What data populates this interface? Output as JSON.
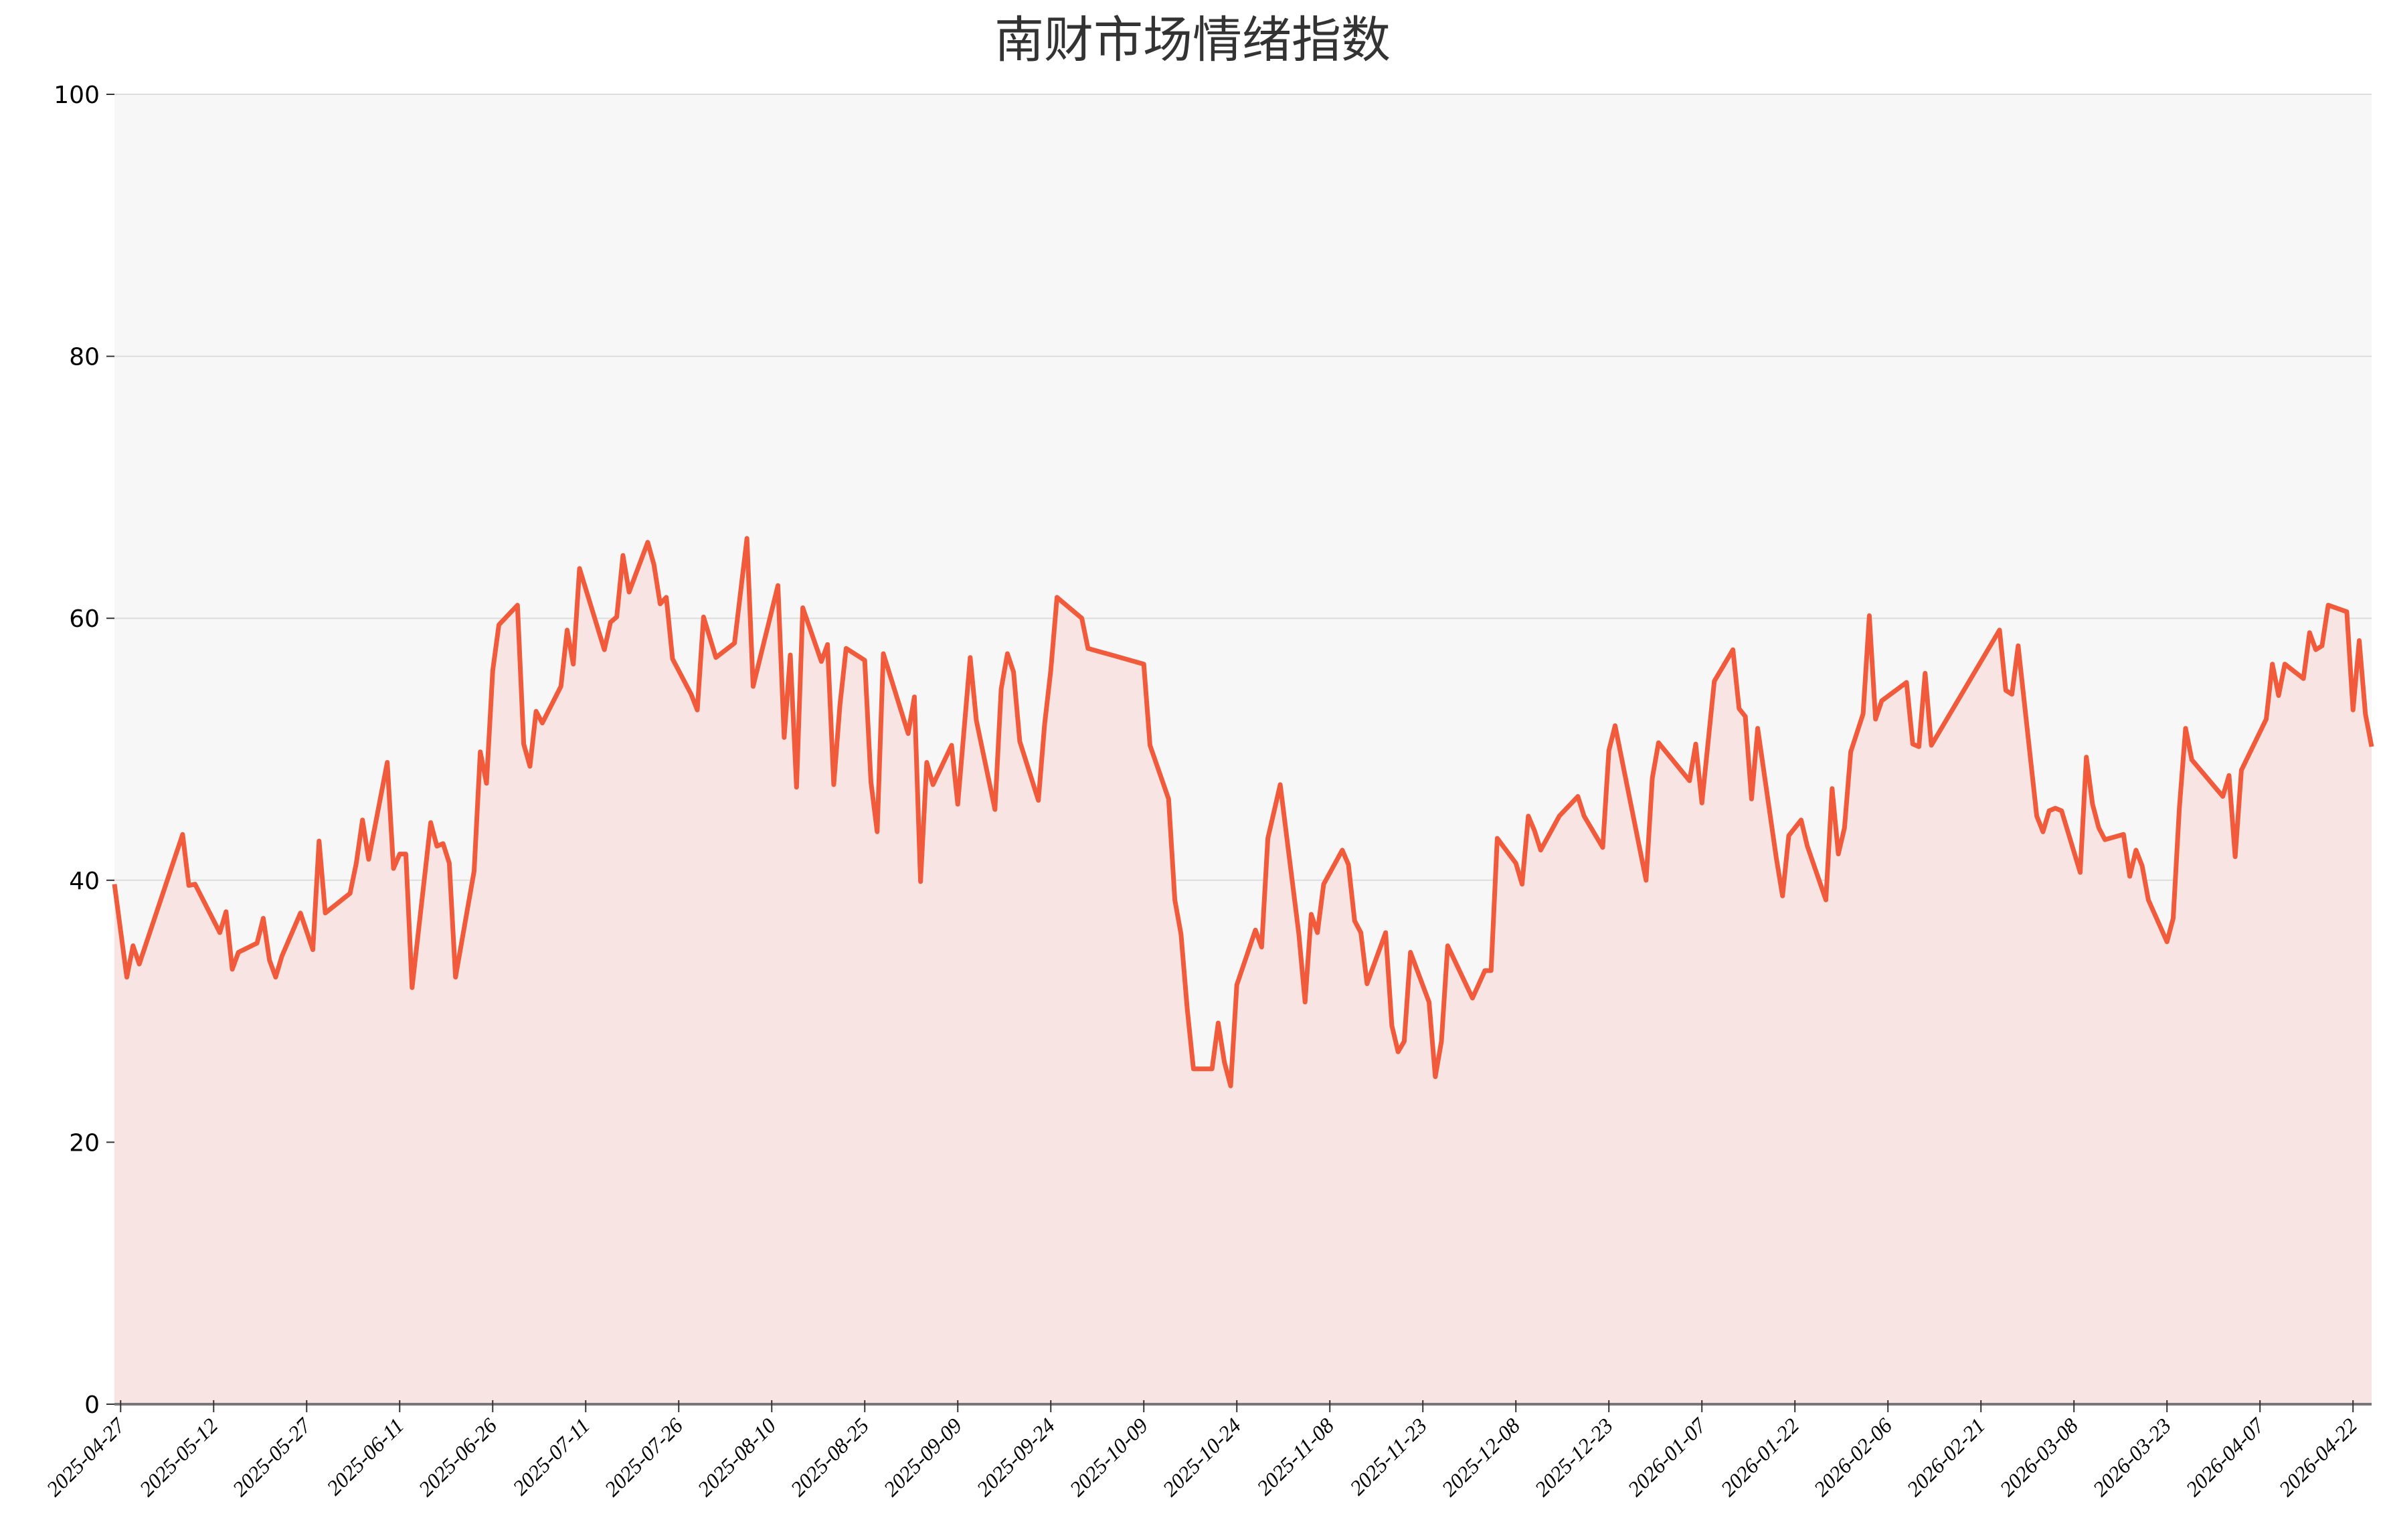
{
  "chart_data": {
    "type": "area",
    "title": "南财市场情绪指数",
    "xlabel": "",
    "ylabel": "",
    "ylim": [
      0,
      100
    ],
    "xlim": [
      "2025-04-26",
      "2026-04-25"
    ],
    "yticks": [
      0,
      20,
      40,
      60,
      80,
      100
    ],
    "xticks": [
      "2025-04-27",
      "2025-05-12",
      "2025-05-27",
      "2025-06-11",
      "2025-06-26",
      "2025-07-11",
      "2025-07-26",
      "2025-08-10",
      "2025-08-25",
      "2025-09-09",
      "2025-09-24",
      "2025-10-09",
      "2025-10-24",
      "2025-11-08",
      "2025-11-23",
      "2025-12-08",
      "2025-12-23",
      "2026-01-07",
      "2026-01-22",
      "2026-02-06",
      "2026-02-21",
      "2026-03-08",
      "2026-03-23",
      "2026-04-07",
      "2026-04-22"
    ],
    "grid": true,
    "colors": {
      "line": "#F15A3A",
      "fill": "#F8E5E3",
      "plot_bg": "#F7F7F7",
      "grid": "#DDDDDD"
    },
    "series": [
      {
        "points": [
          [
            "2025-04-26",
            39.7
          ],
          [
            "2025-04-28",
            32.6
          ],
          [
            "2025-04-29",
            35.0
          ],
          [
            "2025-04-30",
            33.6
          ],
          [
            "2025-05-07",
            43.5
          ],
          [
            "2025-05-08",
            39.6
          ],
          [
            "2025-05-09",
            39.7
          ],
          [
            "2025-05-13",
            36.0
          ],
          [
            "2025-05-14",
            37.6
          ],
          [
            "2025-05-15",
            33.2
          ],
          [
            "2025-05-16",
            34.5
          ],
          [
            "2025-05-19",
            35.2
          ],
          [
            "2025-05-20",
            37.1
          ],
          [
            "2025-05-21",
            33.9
          ],
          [
            "2025-05-22",
            32.6
          ],
          [
            "2025-05-23",
            34.2
          ],
          [
            "2025-05-26",
            37.5
          ],
          [
            "2025-05-28",
            34.7
          ],
          [
            "2025-05-29",
            43.0
          ],
          [
            "2025-05-30",
            37.5
          ],
          [
            "2025-06-03",
            39.0
          ],
          [
            "2025-06-04",
            41.3
          ],
          [
            "2025-06-05",
            44.6
          ],
          [
            "2025-06-06",
            41.6
          ],
          [
            "2025-06-09",
            49.0
          ],
          [
            "2025-06-10",
            40.9
          ],
          [
            "2025-06-11",
            42.0
          ],
          [
            "2025-06-12",
            42.0
          ],
          [
            "2025-06-13",
            31.8
          ],
          [
            "2025-06-16",
            44.4
          ],
          [
            "2025-06-17",
            42.6
          ],
          [
            "2025-06-18",
            42.8
          ],
          [
            "2025-06-19",
            41.3
          ],
          [
            "2025-06-20",
            32.6
          ],
          [
            "2025-06-23",
            40.7
          ],
          [
            "2025-06-24",
            49.8
          ],
          [
            "2025-06-25",
            47.4
          ],
          [
            "2025-06-26",
            56.0
          ],
          [
            "2025-06-27",
            59.5
          ],
          [
            "2025-06-30",
            61.0
          ],
          [
            "2025-07-01",
            50.4
          ],
          [
            "2025-07-02",
            48.7
          ],
          [
            "2025-07-03",
            52.9
          ],
          [
            "2025-07-04",
            52.0
          ],
          [
            "2025-07-07",
            54.8
          ],
          [
            "2025-07-08",
            59.1
          ],
          [
            "2025-07-09",
            56.5
          ],
          [
            "2025-07-10",
            63.8
          ],
          [
            "2025-07-14",
            57.6
          ],
          [
            "2025-07-15",
            59.7
          ],
          [
            "2025-07-16",
            60.1
          ],
          [
            "2025-07-17",
            64.8
          ],
          [
            "2025-07-18",
            62.0
          ],
          [
            "2025-07-21",
            65.8
          ],
          [
            "2025-07-22",
            64.1
          ],
          [
            "2025-07-23",
            61.1
          ],
          [
            "2025-07-24",
            61.6
          ],
          [
            "2025-07-25",
            56.9
          ],
          [
            "2025-07-28",
            54.2
          ],
          [
            "2025-07-29",
            53.0
          ],
          [
            "2025-07-30",
            60.1
          ],
          [
            "2025-08-01",
            57.0
          ],
          [
            "2025-08-04",
            58.1
          ],
          [
            "2025-08-06",
            66.1
          ],
          [
            "2025-08-07",
            54.8
          ],
          [
            "2025-08-11",
            62.5
          ],
          [
            "2025-08-12",
            50.9
          ],
          [
            "2025-08-13",
            57.2
          ],
          [
            "2025-08-14",
            47.1
          ],
          [
            "2025-08-15",
            60.8
          ],
          [
            "2025-08-18",
            56.7
          ],
          [
            "2025-08-19",
            58.0
          ],
          [
            "2025-08-20",
            47.3
          ],
          [
            "2025-08-21",
            53.4
          ],
          [
            "2025-08-22",
            57.7
          ],
          [
            "2025-08-25",
            56.8
          ],
          [
            "2025-08-26",
            47.5
          ],
          [
            "2025-08-27",
            43.7
          ],
          [
            "2025-08-28",
            57.3
          ],
          [
            "2025-09-01",
            51.2
          ],
          [
            "2025-09-02",
            54.0
          ],
          [
            "2025-09-03",
            39.9
          ],
          [
            "2025-09-04",
            49.0
          ],
          [
            "2025-09-05",
            47.3
          ],
          [
            "2025-09-08",
            50.3
          ],
          [
            "2025-09-09",
            45.8
          ],
          [
            "2025-09-11",
            57.0
          ],
          [
            "2025-09-12",
            52.2
          ],
          [
            "2025-09-15",
            45.4
          ],
          [
            "2025-09-16",
            54.6
          ],
          [
            "2025-09-17",
            57.3
          ],
          [
            "2025-09-18",
            55.9
          ],
          [
            "2025-09-19",
            50.6
          ],
          [
            "2025-09-22",
            46.1
          ],
          [
            "2025-09-23",
            51.9
          ],
          [
            "2025-09-24",
            56.0
          ],
          [
            "2025-09-25",
            61.6
          ],
          [
            "2025-09-29",
            60.0
          ],
          [
            "2025-09-30",
            57.7
          ],
          [
            "2025-10-09",
            56.5
          ],
          [
            "2025-10-10",
            50.3
          ],
          [
            "2025-10-13",
            46.2
          ],
          [
            "2025-10-14",
            38.5
          ],
          [
            "2025-10-15",
            35.9
          ],
          [
            "2025-10-16",
            30.2
          ],
          [
            "2025-10-17",
            25.6
          ],
          [
            "2025-10-20",
            25.6
          ],
          [
            "2025-10-21",
            29.1
          ],
          [
            "2025-10-22",
            26.1
          ],
          [
            "2025-10-23",
            24.3
          ],
          [
            "2025-10-24",
            32.0
          ],
          [
            "2025-10-27",
            36.2
          ],
          [
            "2025-10-28",
            34.9
          ],
          [
            "2025-10-29",
            43.2
          ],
          [
            "2025-10-31",
            47.3
          ],
          [
            "2025-11-03",
            35.9
          ],
          [
            "2025-11-04",
            30.7
          ],
          [
            "2025-11-05",
            37.4
          ],
          [
            "2025-11-06",
            36.0
          ],
          [
            "2025-11-07",
            39.7
          ],
          [
            "2025-11-10",
            42.3
          ],
          [
            "2025-11-11",
            41.2
          ],
          [
            "2025-11-12",
            36.9
          ],
          [
            "2025-11-13",
            36.0
          ],
          [
            "2025-11-14",
            32.1
          ],
          [
            "2025-11-17",
            36.0
          ],
          [
            "2025-11-18",
            28.9
          ],
          [
            "2025-11-19",
            26.9
          ],
          [
            "2025-11-20",
            27.7
          ],
          [
            "2025-11-21",
            34.5
          ],
          [
            "2025-11-24",
            30.7
          ],
          [
            "2025-11-25",
            25.0
          ],
          [
            "2025-11-26",
            27.7
          ],
          [
            "2025-11-27",
            35.0
          ],
          [
            "2025-12-01",
            31.0
          ],
          [
            "2025-12-03",
            33.1
          ],
          [
            "2025-12-04",
            33.1
          ],
          [
            "2025-12-05",
            43.2
          ],
          [
            "2025-12-08",
            41.3
          ],
          [
            "2025-12-09",
            39.7
          ],
          [
            "2025-12-10",
            44.9
          ],
          [
            "2025-12-11",
            43.8
          ],
          [
            "2025-12-12",
            42.3
          ],
          [
            "2025-12-15",
            44.9
          ],
          [
            "2025-12-17",
            45.9
          ],
          [
            "2025-12-18",
            46.4
          ],
          [
            "2025-12-19",
            44.9
          ],
          [
            "2025-12-22",
            42.5
          ],
          [
            "2025-12-23",
            49.9
          ],
          [
            "2025-12-24",
            51.8
          ],
          [
            "2025-12-29",
            40.0
          ],
          [
            "2025-12-30",
            47.8
          ],
          [
            "2025-12-31",
            50.5
          ],
          [
            "2026-01-05",
            47.6
          ],
          [
            "2026-01-06",
            50.4
          ],
          [
            "2026-01-07",
            45.9
          ],
          [
            "2026-01-09",
            55.2
          ],
          [
            "2026-01-12",
            57.6
          ],
          [
            "2026-01-13",
            53.1
          ],
          [
            "2026-01-14",
            52.5
          ],
          [
            "2026-01-15",
            46.2
          ],
          [
            "2026-01-16",
            51.6
          ],
          [
            "2026-01-19",
            41.7
          ],
          [
            "2026-01-20",
            38.8
          ],
          [
            "2026-01-21",
            43.4
          ],
          [
            "2026-01-23",
            44.6
          ],
          [
            "2026-01-24",
            42.6
          ],
          [
            "2026-01-27",
            38.5
          ],
          [
            "2026-01-28",
            47.0
          ],
          [
            "2026-01-29",
            42.0
          ],
          [
            "2026-01-30",
            44.0
          ],
          [
            "2026-01-31",
            49.8
          ],
          [
            "2026-02-02",
            52.7
          ],
          [
            "2026-02-03",
            60.2
          ],
          [
            "2026-02-04",
            52.3
          ],
          [
            "2026-02-05",
            53.7
          ],
          [
            "2026-02-09",
            55.1
          ],
          [
            "2026-02-10",
            50.4
          ],
          [
            "2026-02-11",
            50.2
          ],
          [
            "2026-02-12",
            55.8
          ],
          [
            "2026-02-13",
            50.3
          ],
          [
            "2026-02-24",
            59.1
          ],
          [
            "2026-02-25",
            54.5
          ],
          [
            "2026-02-26",
            54.2
          ],
          [
            "2026-02-27",
            57.9
          ],
          [
            "2026-03-02",
            44.9
          ],
          [
            "2026-03-03",
            43.7
          ],
          [
            "2026-03-04",
            45.3
          ],
          [
            "2026-03-05",
            45.5
          ],
          [
            "2026-03-06",
            45.3
          ],
          [
            "2026-03-09",
            40.6
          ],
          [
            "2026-03-10",
            49.4
          ],
          [
            "2026-03-11",
            45.8
          ],
          [
            "2026-03-12",
            44.0
          ],
          [
            "2026-03-13",
            43.1
          ],
          [
            "2026-03-16",
            43.5
          ],
          [
            "2026-03-17",
            40.3
          ],
          [
            "2026-03-18",
            42.3
          ],
          [
            "2026-03-19",
            41.1
          ],
          [
            "2026-03-20",
            38.5
          ],
          [
            "2026-03-23",
            35.3
          ],
          [
            "2026-03-24",
            37.1
          ],
          [
            "2026-03-25",
            45.5
          ],
          [
            "2026-03-26",
            51.6
          ],
          [
            "2026-03-27",
            49.2
          ],
          [
            "2026-04-01",
            46.4
          ],
          [
            "2026-04-02",
            48.0
          ],
          [
            "2026-04-03",
            41.8
          ],
          [
            "2026-04-04",
            48.4
          ],
          [
            "2026-04-08",
            52.3
          ],
          [
            "2026-04-09",
            56.5
          ],
          [
            "2026-04-10",
            54.1
          ],
          [
            "2026-04-11",
            56.5
          ],
          [
            "2026-04-14",
            55.4
          ],
          [
            "2026-04-15",
            58.9
          ],
          [
            "2026-04-16",
            57.6
          ],
          [
            "2026-04-17",
            57.9
          ],
          [
            "2026-04-18",
            61.0
          ],
          [
            "2026-04-21",
            60.5
          ],
          [
            "2026-04-22",
            53.0
          ],
          [
            "2026-04-23",
            58.3
          ],
          [
            "2026-04-24",
            52.7
          ],
          [
            "2026-04-25",
            50.2
          ]
        ]
      }
    ]
  }
}
